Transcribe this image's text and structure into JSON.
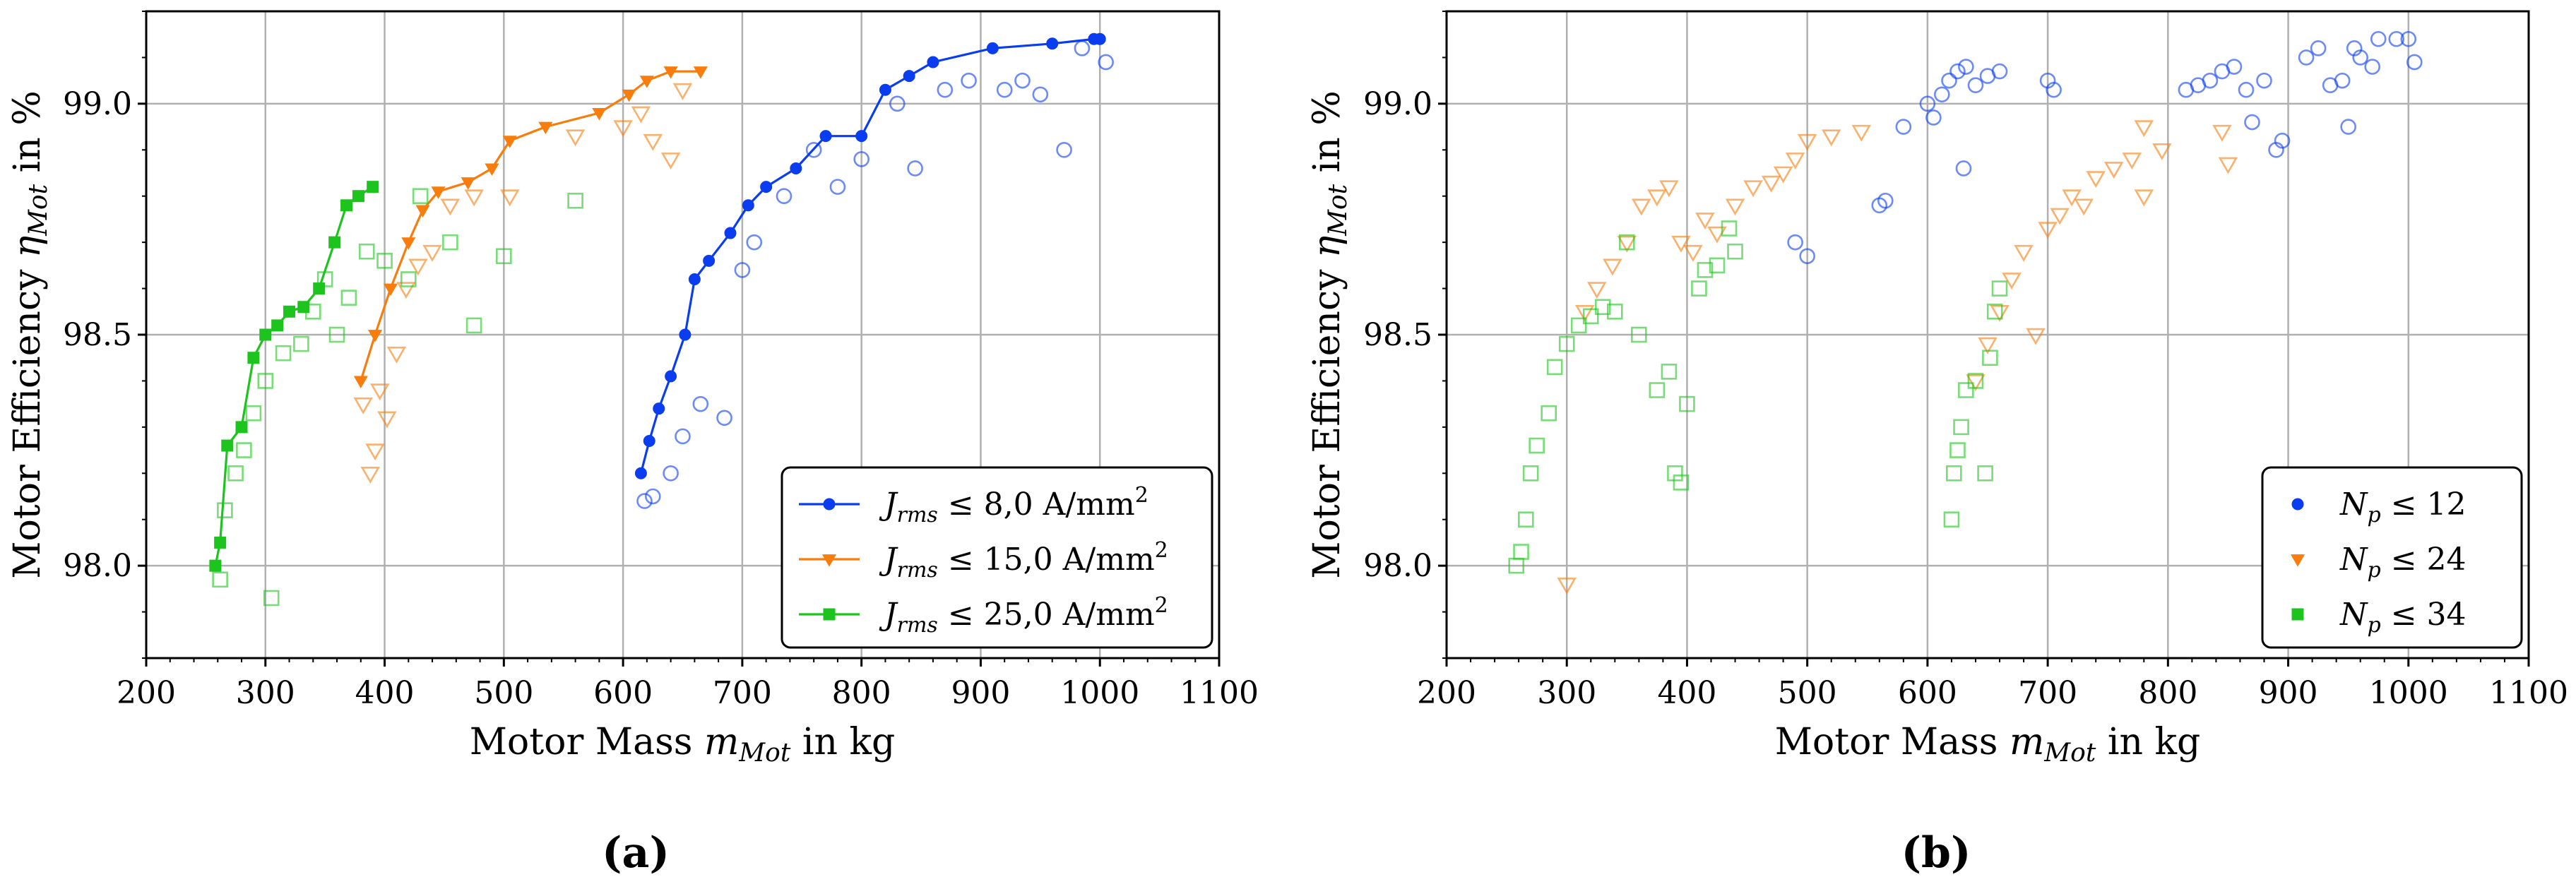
{
  "colors": {
    "blue": "#0a3df0",
    "orange": "#f97d0d",
    "green": "#1ec41e"
  },
  "chart_data": [
    {
      "type": "scatter",
      "panel_label": "(a)",
      "xlabel": "Motor Mass m_Mot in kg",
      "ylabel": "Motor Efficiency η_Mot in %",
      "xlim": [
        200,
        1100
      ],
      "ylim": [
        97.8,
        99.2
      ],
      "xticks": [
        "200",
        "300",
        "400",
        "500",
        "600",
        "700",
        "800",
        "900",
        "1000",
        "1100"
      ],
      "yticks": [
        "98.0",
        "98.5",
        "99.0"
      ],
      "grid": true,
      "legend_position": "lower-right",
      "series": [
        {
          "name": "J_rms ≤ 8,0 A/mm²",
          "color": "#0a3df0",
          "marker": "circle",
          "line": true,
          "front": [
            [
              615,
              98.2
            ],
            [
              622,
              98.27
            ],
            [
              630,
              98.34
            ],
            [
              640,
              98.41
            ],
            [
              652,
              98.5
            ],
            [
              660,
              98.62
            ],
            [
              672,
              98.66
            ],
            [
              690,
              98.72
            ],
            [
              705,
              98.78
            ],
            [
              720,
              98.82
            ],
            [
              745,
              98.86
            ],
            [
              770,
              98.93
            ],
            [
              800,
              98.93
            ],
            [
              820,
              99.03
            ],
            [
              840,
              99.06
            ],
            [
              860,
              99.09
            ],
            [
              910,
              99.12
            ],
            [
              960,
              99.13
            ],
            [
              995,
              99.14
            ],
            [
              1000,
              99.14
            ]
          ],
          "points": [
            [
              618,
              98.14
            ],
            [
              625,
              98.15
            ],
            [
              640,
              98.2
            ],
            [
              650,
              98.28
            ],
            [
              665,
              98.35
            ],
            [
              685,
              98.32
            ],
            [
              700,
              98.64
            ],
            [
              710,
              98.7
            ],
            [
              735,
              98.8
            ],
            [
              760,
              98.9
            ],
            [
              780,
              98.82
            ],
            [
              800,
              98.88
            ],
            [
              830,
              99.0
            ],
            [
              845,
              98.86
            ],
            [
              870,
              99.03
            ],
            [
              890,
              99.05
            ],
            [
              920,
              99.03
            ],
            [
              935,
              99.05
            ],
            [
              950,
              99.02
            ],
            [
              970,
              98.9
            ],
            [
              985,
              99.12
            ],
            [
              1005,
              99.09
            ]
          ]
        },
        {
          "name": "J_rms ≤ 15,0 A/mm²",
          "color": "#f97d0d",
          "marker": "triangle",
          "line": true,
          "front": [
            [
              380,
              98.4
            ],
            [
              392,
              98.5
            ],
            [
              405,
              98.6
            ],
            [
              420,
              98.7
            ],
            [
              432,
              98.77
            ],
            [
              445,
              98.81
            ],
            [
              470,
              98.83
            ],
            [
              490,
              98.86
            ],
            [
              505,
              98.92
            ],
            [
              535,
              98.95
            ],
            [
              580,
              98.98
            ],
            [
              605,
              99.02
            ],
            [
              620,
              99.05
            ],
            [
              640,
              99.07
            ],
            [
              665,
              99.07
            ]
          ],
          "points": [
            [
              382,
              98.35
            ],
            [
              388,
              98.2
            ],
            [
              392,
              98.25
            ],
            [
              396,
              98.38
            ],
            [
              402,
              98.32
            ],
            [
              410,
              98.46
            ],
            [
              418,
              98.6
            ],
            [
              428,
              98.65
            ],
            [
              440,
              98.68
            ],
            [
              455,
              98.78
            ],
            [
              475,
              98.8
            ],
            [
              505,
              98.8
            ],
            [
              560,
              98.93
            ],
            [
              600,
              98.95
            ],
            [
              615,
              98.98
            ],
            [
              625,
              98.92
            ],
            [
              640,
              98.88
            ],
            [
              650,
              99.03
            ]
          ]
        },
        {
          "name": "J_rms ≤ 25,0 A/mm²",
          "color": "#1ec41e",
          "marker": "square",
          "line": true,
          "front": [
            [
              258,
              98.0
            ],
            [
              262,
              98.05
            ],
            [
              268,
              98.26
            ],
            [
              280,
              98.3
            ],
            [
              290,
              98.45
            ],
            [
              300,
              98.5
            ],
            [
              310,
              98.52
            ],
            [
              320,
              98.55
            ],
            [
              332,
              98.56
            ],
            [
              345,
              98.6
            ],
            [
              358,
              98.7
            ],
            [
              368,
              98.78
            ],
            [
              378,
              98.8
            ],
            [
              390,
              98.82
            ]
          ],
          "points": [
            [
              262,
              97.97
            ],
            [
              266,
              98.12
            ],
            [
              275,
              98.2
            ],
            [
              282,
              98.25
            ],
            [
              290,
              98.33
            ],
            [
              300,
              98.4
            ],
            [
              305,
              97.93
            ],
            [
              315,
              98.46
            ],
            [
              330,
              98.48
            ],
            [
              340,
              98.55
            ],
            [
              350,
              98.62
            ],
            [
              360,
              98.5
            ],
            [
              370,
              98.58
            ],
            [
              385,
              98.68
            ],
            [
              400,
              98.66
            ],
            [
              420,
              98.62
            ],
            [
              430,
              98.8
            ],
            [
              455,
              98.7
            ],
            [
              475,
              98.52
            ],
            [
              500,
              98.67
            ],
            [
              560,
              98.79
            ]
          ]
        }
      ]
    },
    {
      "type": "scatter",
      "panel_label": "(b)",
      "xlabel": "Motor Mass m_Mot in kg",
      "ylabel": "Motor Efficiency η_Mot in %",
      "xlim": [
        200,
        1100
      ],
      "ylim": [
        97.8,
        99.2
      ],
      "xticks": [
        "200",
        "300",
        "400",
        "500",
        "600",
        "700",
        "800",
        "900",
        "1000",
        "1100"
      ],
      "yticks": [
        "98.0",
        "98.5",
        "99.0"
      ],
      "grid": true,
      "legend_position": "lower-right",
      "series": [
        {
          "name": "N_p ≤ 12",
          "color": "#0a3df0",
          "marker": "circle",
          "line": false,
          "points": [
            [
              490,
              98.7
            ],
            [
              500,
              98.67
            ],
            [
              560,
              98.78
            ],
            [
              565,
              98.79
            ],
            [
              580,
              98.95
            ],
            [
              600,
              99.0
            ],
            [
              605,
              98.97
            ],
            [
              612,
              99.02
            ],
            [
              618,
              99.05
            ],
            [
              625,
              99.07
            ],
            [
              632,
              99.08
            ],
            [
              640,
              99.04
            ],
            [
              650,
              99.06
            ],
            [
              660,
              99.07
            ],
            [
              630,
              98.86
            ],
            [
              700,
              99.05
            ],
            [
              705,
              99.03
            ],
            [
              815,
              99.03
            ],
            [
              825,
              99.04
            ],
            [
              835,
              99.05
            ],
            [
              845,
              99.07
            ],
            [
              855,
              99.08
            ],
            [
              865,
              99.03
            ],
            [
              870,
              98.96
            ],
            [
              880,
              99.05
            ],
            [
              890,
              98.9
            ],
            [
              895,
              98.92
            ],
            [
              915,
              99.1
            ],
            [
              925,
              99.12
            ],
            [
              935,
              99.04
            ],
            [
              945,
              99.05
            ],
            [
              950,
              98.95
            ],
            [
              955,
              99.12
            ],
            [
              960,
              99.1
            ],
            [
              970,
              99.08
            ],
            [
              975,
              99.14
            ],
            [
              990,
              99.14
            ],
            [
              1000,
              99.14
            ],
            [
              1005,
              99.09
            ]
          ]
        },
        {
          "name": "N_p ≤ 24",
          "color": "#f97d0d",
          "marker": "triangle",
          "line": false,
          "points": [
            [
              300,
              97.96
            ],
            [
              315,
              98.55
            ],
            [
              325,
              98.6
            ],
            [
              338,
              98.65
            ],
            [
              350,
              98.7
            ],
            [
              362,
              98.78
            ],
            [
              375,
              98.8
            ],
            [
              385,
              98.82
            ],
            [
              395,
              98.7
            ],
            [
              405,
              98.68
            ],
            [
              415,
              98.75
            ],
            [
              425,
              98.72
            ],
            [
              440,
              98.78
            ],
            [
              455,
              98.82
            ],
            [
              470,
              98.83
            ],
            [
              480,
              98.85
            ],
            [
              490,
              98.88
            ],
            [
              500,
              98.92
            ],
            [
              520,
              98.93
            ],
            [
              545,
              98.94
            ],
            [
              640,
              98.4
            ],
            [
              650,
              98.48
            ],
            [
              660,
              98.55
            ],
            [
              670,
              98.62
            ],
            [
              680,
              98.68
            ],
            [
              690,
              98.5
            ],
            [
              700,
              98.73
            ],
            [
              710,
              98.76
            ],
            [
              720,
              98.8
            ],
            [
              730,
              98.78
            ],
            [
              740,
              98.84
            ],
            [
              755,
              98.86
            ],
            [
              770,
              98.88
            ],
            [
              780,
              98.8
            ],
            [
              795,
              98.9
            ],
            [
              780,
              98.95
            ],
            [
              845,
              98.94
            ],
            [
              850,
              98.87
            ]
          ]
        },
        {
          "name": "N_p ≤ 34",
          "color": "#1ec41e",
          "marker": "square",
          "line": false,
          "points": [
            [
              258,
              98.0
            ],
            [
              262,
              98.03
            ],
            [
              266,
              98.1
            ],
            [
              270,
              98.2
            ],
            [
              275,
              98.26
            ],
            [
              285,
              98.33
            ],
            [
              290,
              98.43
            ],
            [
              300,
              98.48
            ],
            [
              310,
              98.52
            ],
            [
              320,
              98.54
            ],
            [
              330,
              98.56
            ],
            [
              340,
              98.55
            ],
            [
              350,
              98.7
            ],
            [
              360,
              98.5
            ],
            [
              375,
              98.38
            ],
            [
              385,
              98.42
            ],
            [
              390,
              98.2
            ],
            [
              395,
              98.18
            ],
            [
              400,
              98.35
            ],
            [
              410,
              98.6
            ],
            [
              415,
              98.64
            ],
            [
              425,
              98.65
            ],
            [
              435,
              98.73
            ],
            [
              440,
              98.68
            ],
            [
              620,
              98.1
            ],
            [
              622,
              98.2
            ],
            [
              625,
              98.25
            ],
            [
              628,
              98.3
            ],
            [
              632,
              98.38
            ],
            [
              640,
              98.4
            ],
            [
              648,
              98.2
            ],
            [
              652,
              98.45
            ],
            [
              656,
              98.55
            ],
            [
              660,
              98.6
            ]
          ]
        }
      ]
    }
  ],
  "legends": [
    {
      "items": [
        {
          "pre": "J",
          "sub": "rms",
          "post": " ≤ 8,0 A/mm",
          "sup": "2"
        },
        {
          "pre": "J",
          "sub": "rms",
          "post": " ≤ 15,0 A/mm",
          "sup": "2"
        },
        {
          "pre": "J",
          "sub": "rms",
          "post": " ≤ 25,0 A/mm",
          "sup": "2"
        }
      ]
    },
    {
      "items": [
        {
          "pre": "N",
          "sub": "p",
          "post": " ≤ 12",
          "sup": ""
        },
        {
          "pre": "N",
          "sub": "p",
          "post": " ≤ 24",
          "sup": ""
        },
        {
          "pre": "N",
          "sub": "p",
          "post": " ≤ 34",
          "sup": ""
        }
      ]
    }
  ],
  "axis_labels": {
    "x_pre": "Motor Mass ",
    "x_var": "m",
    "x_sub": "Mot",
    "x_post": " in kg",
    "y_pre": "Motor Efficiency ",
    "y_var": "η",
    "y_sub": "Mot",
    "y_post": " in %"
  }
}
